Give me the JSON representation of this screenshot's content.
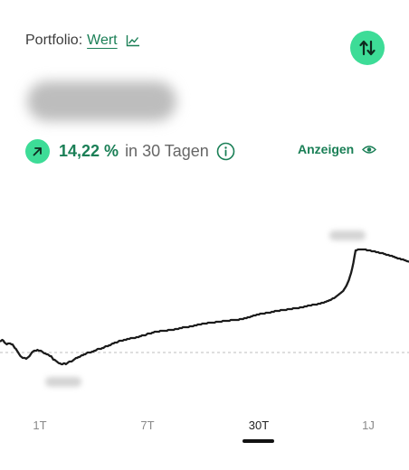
{
  "header": {
    "label": "Portfolio:",
    "mode": "Wert",
    "mode_icon": "line-chart-icon",
    "sort_icon": "sort-arrows-icon"
  },
  "performance": {
    "value": "14,22 %",
    "period": "in 30 Tagen",
    "trend_icon": "arrow-up-right-icon",
    "info_icon": "info-icon",
    "show_label": "Anzeigen",
    "show_icon": "eye-icon"
  },
  "chart_data": {
    "type": "line",
    "series": [
      {
        "values": [
          378,
          377,
          376,
          377,
          379,
          380,
          381,
          380,
          380,
          380,
          381,
          381,
          383,
          385,
          386,
          388,
          390,
          392,
          394,
          395,
          396,
          396,
          396,
          397,
          396,
          395,
          394,
          392,
          390,
          389,
          388,
          388,
          388,
          387,
          388,
          388,
          388,
          389,
          390,
          391,
          391,
          392,
          392,
          393,
          394,
          394,
          396,
          398,
          398,
          399,
          400,
          401,
          402,
          402,
          403,
          403,
          402,
          402,
          403,
          402,
          401,
          400,
          400,
          400,
          399,
          398,
          397,
          396,
          396,
          395,
          395,
          394,
          393,
          393,
          392,
          392,
          391,
          390,
          390,
          390,
          390,
          389,
          389,
          388,
          388,
          387,
          386,
          386,
          386,
          386,
          385,
          385,
          384,
          383,
          383,
          383,
          382,
          382,
          381,
          380,
          380,
          379,
          379,
          379,
          378,
          377,
          377,
          377,
          377,
          376,
          376,
          376,
          375,
          375,
          375,
          374,
          374,
          374,
          374,
          374,
          373,
          373,
          373,
          372,
          372,
          371,
          371,
          371,
          371,
          370,
          369,
          369,
          369,
          369,
          368,
          368,
          367,
          367,
          367,
          367,
          367,
          366,
          366,
          366,
          366,
          366,
          366,
          366,
          365,
          365,
          365,
          365,
          365,
          365,
          364,
          364,
          364,
          364,
          363,
          363,
          363,
          362,
          362,
          362,
          362,
          362,
          362,
          361,
          361,
          361,
          361,
          360,
          360,
          360,
          359,
          359,
          359,
          359,
          358,
          358,
          358,
          358,
          358,
          357,
          357,
          357,
          357,
          357,
          357,
          357,
          356,
          356,
          356,
          356,
          356,
          356,
          355,
          355,
          355,
          355,
          355,
          355,
          355,
          354,
          354,
          354,
          354,
          354,
          354,
          354,
          354,
          353,
          353,
          353,
          353,
          352,
          352,
          352,
          351,
          351,
          351,
          350,
          350,
          349,
          349,
          349,
          348,
          348,
          348,
          347,
          347,
          347,
          347,
          347,
          346,
          346,
          346,
          346,
          346,
          345,
          345,
          345,
          344,
          344,
          344,
          344,
          344,
          343,
          343,
          343,
          343,
          343,
          343,
          342,
          342,
          342,
          342,
          342,
          341,
          341,
          341,
          341,
          341,
          341,
          340,
          340,
          340,
          340,
          339,
          339,
          339,
          338,
          338,
          338,
          338,
          337,
          337,
          337,
          337,
          337,
          336,
          336,
          336,
          335,
          335,
          335,
          334,
          334,
          333,
          333,
          332,
          332,
          331,
          330,
          330,
          329,
          328,
          327,
          326,
          325,
          324,
          323,
          322,
          320,
          318,
          316,
          313,
          310,
          306,
          302,
          297,
          291,
          284,
          277,
          277,
          276,
          276,
          276,
          276,
          276,
          276,
          276,
          276,
          277,
          277,
          277,
          277,
          278,
          278,
          278,
          278,
          279,
          279,
          279,
          280,
          280,
          280,
          280,
          281,
          281,
          282,
          282,
          282,
          283,
          283,
          283,
          284,
          284,
          285,
          285,
          286,
          286,
          286,
          287,
          287,
          287,
          288,
          288,
          289,
          289,
          290
        ],
        "color": "#1c1c1c"
      }
    ],
    "x_labels": [
      "1T",
      "7T",
      "30T",
      "1J"
    ],
    "active_range": "30T",
    "baseline": 390,
    "baseline_style": "dashed",
    "colors": {
      "line": "#1c1c1c",
      "baseline": "#bdbdbd"
    }
  },
  "ranges": [
    "1T",
    "7T",
    "30T",
    "1J"
  ],
  "colors": {
    "accent_green": "#1a7f56",
    "mint": "#3ddc97",
    "blur": "#bdbdbd"
  }
}
